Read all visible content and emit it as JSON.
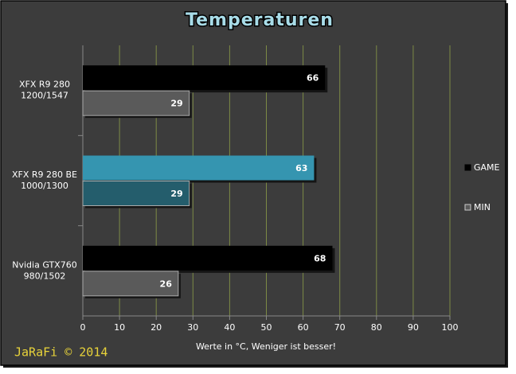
{
  "chart_data": {
    "type": "hbar",
    "title": "Temperaturen",
    "x_label": "Werte in °C, Weniger ist besser!",
    "watermark": "JaRaFi  © 2014",
    "categories": [
      [
        "XFX R9 280",
        "1200/1547"
      ],
      [
        "XFX R9 280 BE",
        "1000/1300"
      ],
      [
        "Nvidia GTX760",
        "980/1502"
      ]
    ],
    "series": [
      {
        "name": "GAME",
        "color": "#000000",
        "point_colors": [
          "#000000",
          "#3595b0",
          "#000000"
        ],
        "values": [
          66,
          63,
          68
        ]
      },
      {
        "name": "MIN",
        "color": "#5a5a5a",
        "point_colors": [
          "#5a5a5a",
          "#245d6c",
          "#5a5a5a"
        ],
        "values": [
          29,
          29,
          26
        ]
      }
    ],
    "xlim": [
      0,
      100
    ],
    "xticks": [
      0,
      10,
      20,
      30,
      40,
      50,
      60,
      70,
      80,
      90,
      100
    ],
    "grid": true,
    "grid_color": "#7d8a45",
    "legend": "right"
  }
}
